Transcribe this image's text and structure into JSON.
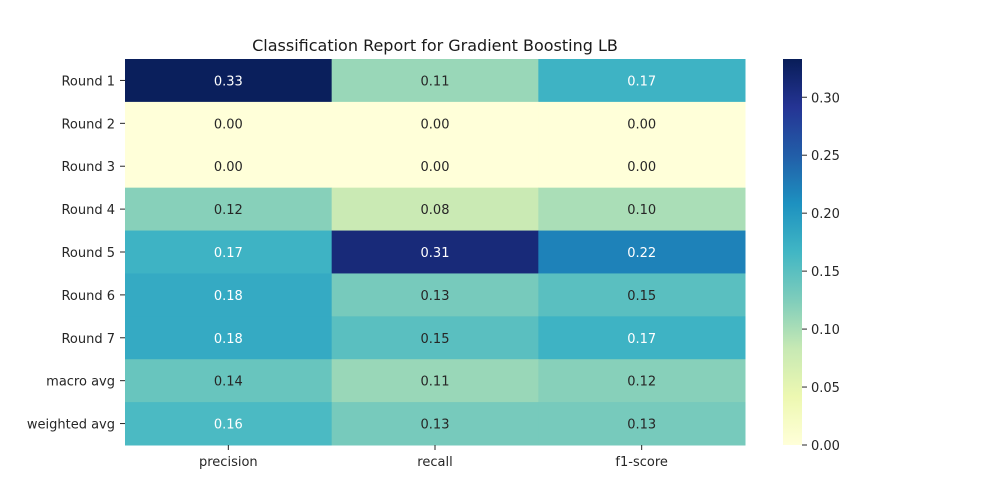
{
  "chart_data": {
    "type": "heatmap",
    "title": "Classification Report for Gradient Boosting LB",
    "xlabel": "",
    "ylabel": "",
    "x": [
      "precision",
      "recall",
      "f1-score"
    ],
    "y": [
      "Round 1",
      "Round 2",
      "Round 3",
      "Round 4",
      "Round 5",
      "Round 6",
      "Round 7",
      "macro avg",
      "weighted avg"
    ],
    "values": [
      [
        0.33,
        0.11,
        0.17
      ],
      [
        0.0,
        0.0,
        0.0
      ],
      [
        0.0,
        0.0,
        0.0
      ],
      [
        0.12,
        0.08,
        0.1
      ],
      [
        0.17,
        0.31,
        0.22
      ],
      [
        0.18,
        0.13,
        0.15
      ],
      [
        0.18,
        0.15,
        0.17
      ],
      [
        0.14,
        0.11,
        0.12
      ],
      [
        0.16,
        0.13,
        0.13
      ]
    ],
    "value_labels": [
      [
        "0.33",
        "0.11",
        "0.17"
      ],
      [
        "0.00",
        "0.00",
        "0.00"
      ],
      [
        "0.00",
        "0.00",
        "0.00"
      ],
      [
        "0.12",
        "0.08",
        "0.10"
      ],
      [
        "0.17",
        "0.31",
        "0.22"
      ],
      [
        "0.18",
        "0.13",
        "0.15"
      ],
      [
        "0.18",
        "0.15",
        "0.17"
      ],
      [
        "0.14",
        "0.11",
        "0.12"
      ],
      [
        "0.16",
        "0.13",
        "0.13"
      ]
    ],
    "colormap": "YlGnBu",
    "colorbar": {
      "vmin": 0.0,
      "vmax": 0.333,
      "ticks": [
        0.0,
        0.05,
        0.1,
        0.15,
        0.2,
        0.25,
        0.3
      ],
      "tick_labels": [
        "0.00",
        "0.05",
        "0.10",
        "0.15",
        "0.20",
        "0.25",
        "0.30"
      ]
    },
    "annotations": true,
    "grid": false,
    "legend": "colorbar-right"
  }
}
